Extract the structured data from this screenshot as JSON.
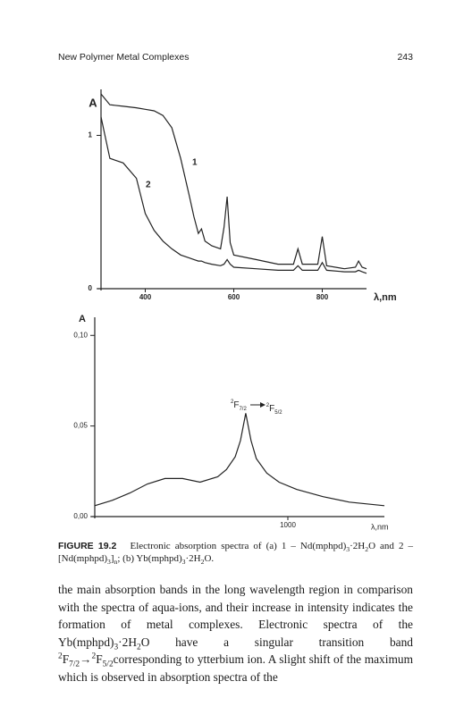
{
  "header": {
    "title": "New Polymer Metal Complexes",
    "page": "243"
  },
  "chart_data": [
    {
      "type": "line",
      "y_label": "A",
      "x_label": "λ,nm",
      "xlim": [
        300,
        900
      ],
      "ylim": [
        0,
        1.3
      ],
      "xticks": [
        400,
        600,
        800
      ],
      "yticks": [
        0,
        1
      ],
      "x": [
        300,
        320,
        350,
        380,
        400,
        420,
        440,
        460,
        480,
        500,
        510,
        520,
        527,
        535,
        550,
        570,
        578,
        585,
        592,
        600,
        650,
        700,
        735,
        745,
        755,
        790,
        800,
        810,
        850,
        875,
        882,
        890,
        900
      ],
      "series": [
        {
          "name": "1",
          "color": "#222222",
          "values": [
            1.27,
            1.2,
            1.19,
            1.18,
            1.17,
            1.16,
            1.13,
            1.05,
            0.85,
            0.6,
            0.47,
            0.36,
            0.39,
            0.31,
            0.28,
            0.26,
            0.4,
            0.6,
            0.3,
            0.22,
            0.19,
            0.16,
            0.16,
            0.26,
            0.16,
            0.16,
            0.34,
            0.15,
            0.13,
            0.14,
            0.18,
            0.14,
            0.13
          ]
        },
        {
          "name": "2",
          "color": "#222222",
          "values": [
            1.12,
            0.85,
            0.82,
            0.72,
            0.49,
            0.38,
            0.31,
            0.26,
            0.22,
            0.2,
            0.19,
            0.18,
            0.18,
            0.17,
            0.16,
            0.15,
            0.16,
            0.19,
            0.16,
            0.14,
            0.13,
            0.12,
            0.12,
            0.15,
            0.12,
            0.12,
            0.17,
            0.12,
            0.11,
            0.11,
            0.12,
            0.11,
            0.1
          ]
        }
      ]
    },
    {
      "type": "line",
      "y_label": "A",
      "x_label": "λ,nm",
      "xlim": [
        890,
        1055
      ],
      "ylim": [
        0,
        0.11
      ],
      "xticks": [
        1000
      ],
      "yticks": [
        {
          "value": 0,
          "label": "0,00"
        },
        {
          "value": 0.05,
          "label": "0,05"
        },
        {
          "value": 0.1,
          "label": "0,10"
        }
      ],
      "x": [
        890,
        900,
        910,
        920,
        930,
        940,
        950,
        960,
        965,
        970,
        973,
        976,
        979,
        982,
        988,
        995,
        1005,
        1020,
        1035,
        1055
      ],
      "series": [
        {
          "color": "#222222",
          "values": [
            0.006,
            0.009,
            0.013,
            0.018,
            0.021,
            0.021,
            0.019,
            0.022,
            0.026,
            0.033,
            0.042,
            0.057,
            0.042,
            0.032,
            0.024,
            0.019,
            0.015,
            0.011,
            0.008,
            0.006
          ]
        }
      ],
      "annotation": {
        "from": {
          "sup": "2",
          "term": "F",
          "sub": "7/2"
        },
        "to": {
          "sup": "2",
          "term": "F",
          "sub": "5/2"
        }
      }
    }
  ],
  "caption": {
    "label": "FIGURE 19.2",
    "text": [
      "Electronic absorption spectra of (a) 1 – Nd(mphpd)",
      "3",
      "·2H",
      "2",
      "O and 2 – [Nd(mphpd)",
      "3",
      "]",
      "n",
      "; (b) Yb(mphpd)",
      "3",
      "·2H",
      "2",
      "O."
    ]
  },
  "body": {
    "text": [
      "the main absorption bands in the long wavelength region in comparison with the spectra of aqua-ions, and their increase in intensity indicates the formation of metal complexes. Electronic spectra of the Yb(mphpd)",
      "3",
      "·2H",
      "2",
      "O have a singular transition band ",
      "2",
      "F",
      "7/2",
      "→",
      "2",
      "F",
      "5/2",
      "corresponding to ytterbium ion. A slight shift of the maximum which is observed in absorption spectra of the"
    ]
  }
}
